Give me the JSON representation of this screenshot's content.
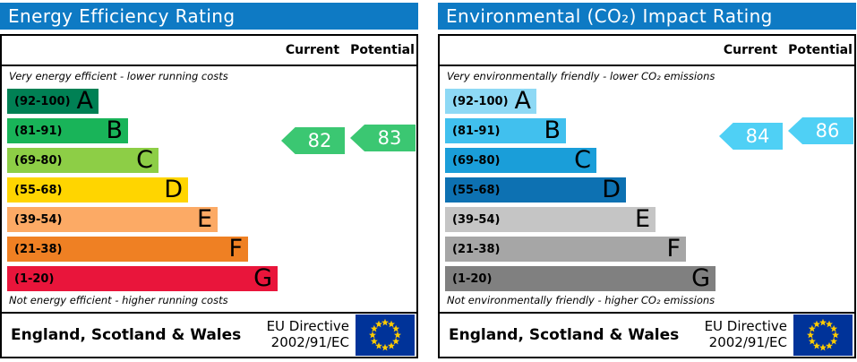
{
  "eu_flag": {
    "background": "#003399",
    "star_color": "#ffcc00"
  },
  "chart_data": [
    {
      "type": "bar",
      "title": "Energy Efficiency Rating",
      "columns": [
        "Current",
        "Potential"
      ],
      "top_note": "Very energy efficient - lower running costs",
      "bottom_note": "Not energy efficient - higher running costs",
      "bands": [
        {
          "letter": "A",
          "label": "(92-100)",
          "min": 92,
          "max": 100,
          "color": "#008054"
        },
        {
          "letter": "B",
          "label": "(81-91)",
          "min": 81,
          "max": 91,
          "color": "#19b459"
        },
        {
          "letter": "C",
          "label": "(69-80)",
          "min": 69,
          "max": 80,
          "color": "#8dce46"
        },
        {
          "letter": "D",
          "label": "(55-68)",
          "min": 55,
          "max": 68,
          "color": "#ffd500"
        },
        {
          "letter": "E",
          "label": "(39-54)",
          "min": 39,
          "max": 54,
          "color": "#fcaa65"
        },
        {
          "letter": "F",
          "label": "(21-38)",
          "min": 21,
          "max": 38,
          "color": "#ef8023"
        },
        {
          "letter": "G",
          "label": "(1-20)",
          "min": 1,
          "max": 20,
          "color": "#e9153b"
        }
      ],
      "current": {
        "value": 82,
        "band": "B"
      },
      "potential": {
        "value": 83,
        "band": "B"
      },
      "arrow_color": "#3bc772",
      "title_bar_color": "#0e7ac4",
      "footer": {
        "region": "England, Scotland & Wales",
        "directive_lines": [
          "EU Directive",
          "2002/91/EC"
        ]
      }
    },
    {
      "type": "bar",
      "title": "Environmental (CO₂) Impact Rating",
      "columns": [
        "Current",
        "Potential"
      ],
      "top_note": "Very environmentally friendly - lower CO₂ emissions",
      "bottom_note": "Not environmentally friendly - higher CO₂ emissions",
      "bands": [
        {
          "letter": "A",
          "label": "(92-100)",
          "min": 92,
          "max": 100,
          "color": "#8ed9f5"
        },
        {
          "letter": "B",
          "label": "(81-91)",
          "min": 81,
          "max": 91,
          "color": "#41c0ee"
        },
        {
          "letter": "C",
          "label": "(69-80)",
          "min": 69,
          "max": 80,
          "color": "#1a9ed9"
        },
        {
          "letter": "D",
          "label": "(55-68)",
          "min": 55,
          "max": 68,
          "color": "#0d71b2"
        },
        {
          "letter": "E",
          "label": "(39-54)",
          "min": 39,
          "max": 54,
          "color": "#c5c5c5"
        },
        {
          "letter": "F",
          "label": "(21-38)",
          "min": 21,
          "max": 38,
          "color": "#a6a6a6"
        },
        {
          "letter": "G",
          "label": "(1-20)",
          "min": 1,
          "max": 20,
          "color": "#808080"
        }
      ],
      "current": {
        "value": 84,
        "band": "B"
      },
      "potential": {
        "value": 86,
        "band": "B"
      },
      "arrow_color": "#4fd0f5",
      "title_bar_color": "#0e7ac4",
      "footer": {
        "region": "England, Scotland & Wales",
        "directive_lines": [
          "EU Directive",
          "2002/91/EC"
        ]
      }
    }
  ]
}
